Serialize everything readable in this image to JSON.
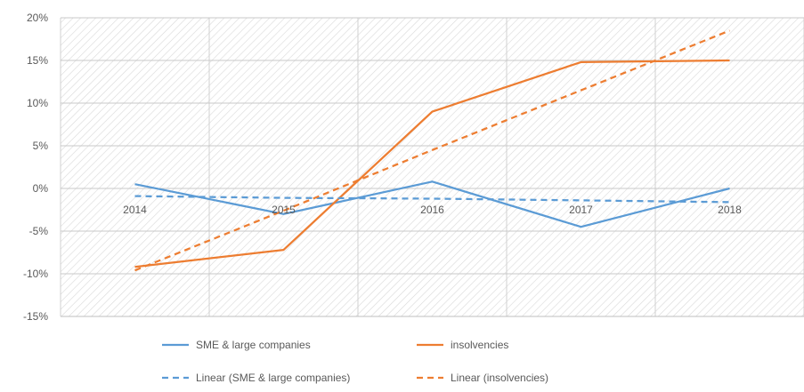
{
  "chart_data": {
    "type": "line",
    "categories": [
      "2014",
      "2015",
      "2016",
      "2017",
      "2018"
    ],
    "y_ticks": [
      "20%",
      "15%",
      "10%",
      "5%",
      "0%",
      "-5%",
      "-10%",
      "-15%"
    ],
    "ylim": [
      -15,
      20
    ],
    "y_unit": "%",
    "grid": "horizontal",
    "plot_background": "diagonal hatch",
    "legend_position": "bottom",
    "series": [
      {
        "name": "SME & large companies",
        "values": [
          0.5,
          -3.0,
          0.8,
          -4.5,
          0.0
        ],
        "color": "#5B9BD5",
        "style": "solid"
      },
      {
        "name": "insolvencies",
        "values": [
          -9.2,
          -7.2,
          9.0,
          14.8,
          15.0
        ],
        "color": "#ED7D31",
        "style": "solid"
      },
      {
        "name": "Linear (SME & large companies)",
        "values": [
          -0.9,
          -1.1,
          -1.2,
          -1.4,
          -1.6
        ],
        "color": "#5B9BD5",
        "style": "dashed"
      },
      {
        "name": "Linear (insolvencies)",
        "values": [
          -9.6,
          -2.6,
          4.5,
          11.5,
          18.5
        ],
        "color": "#ED7D31",
        "style": "dashed"
      }
    ]
  }
}
